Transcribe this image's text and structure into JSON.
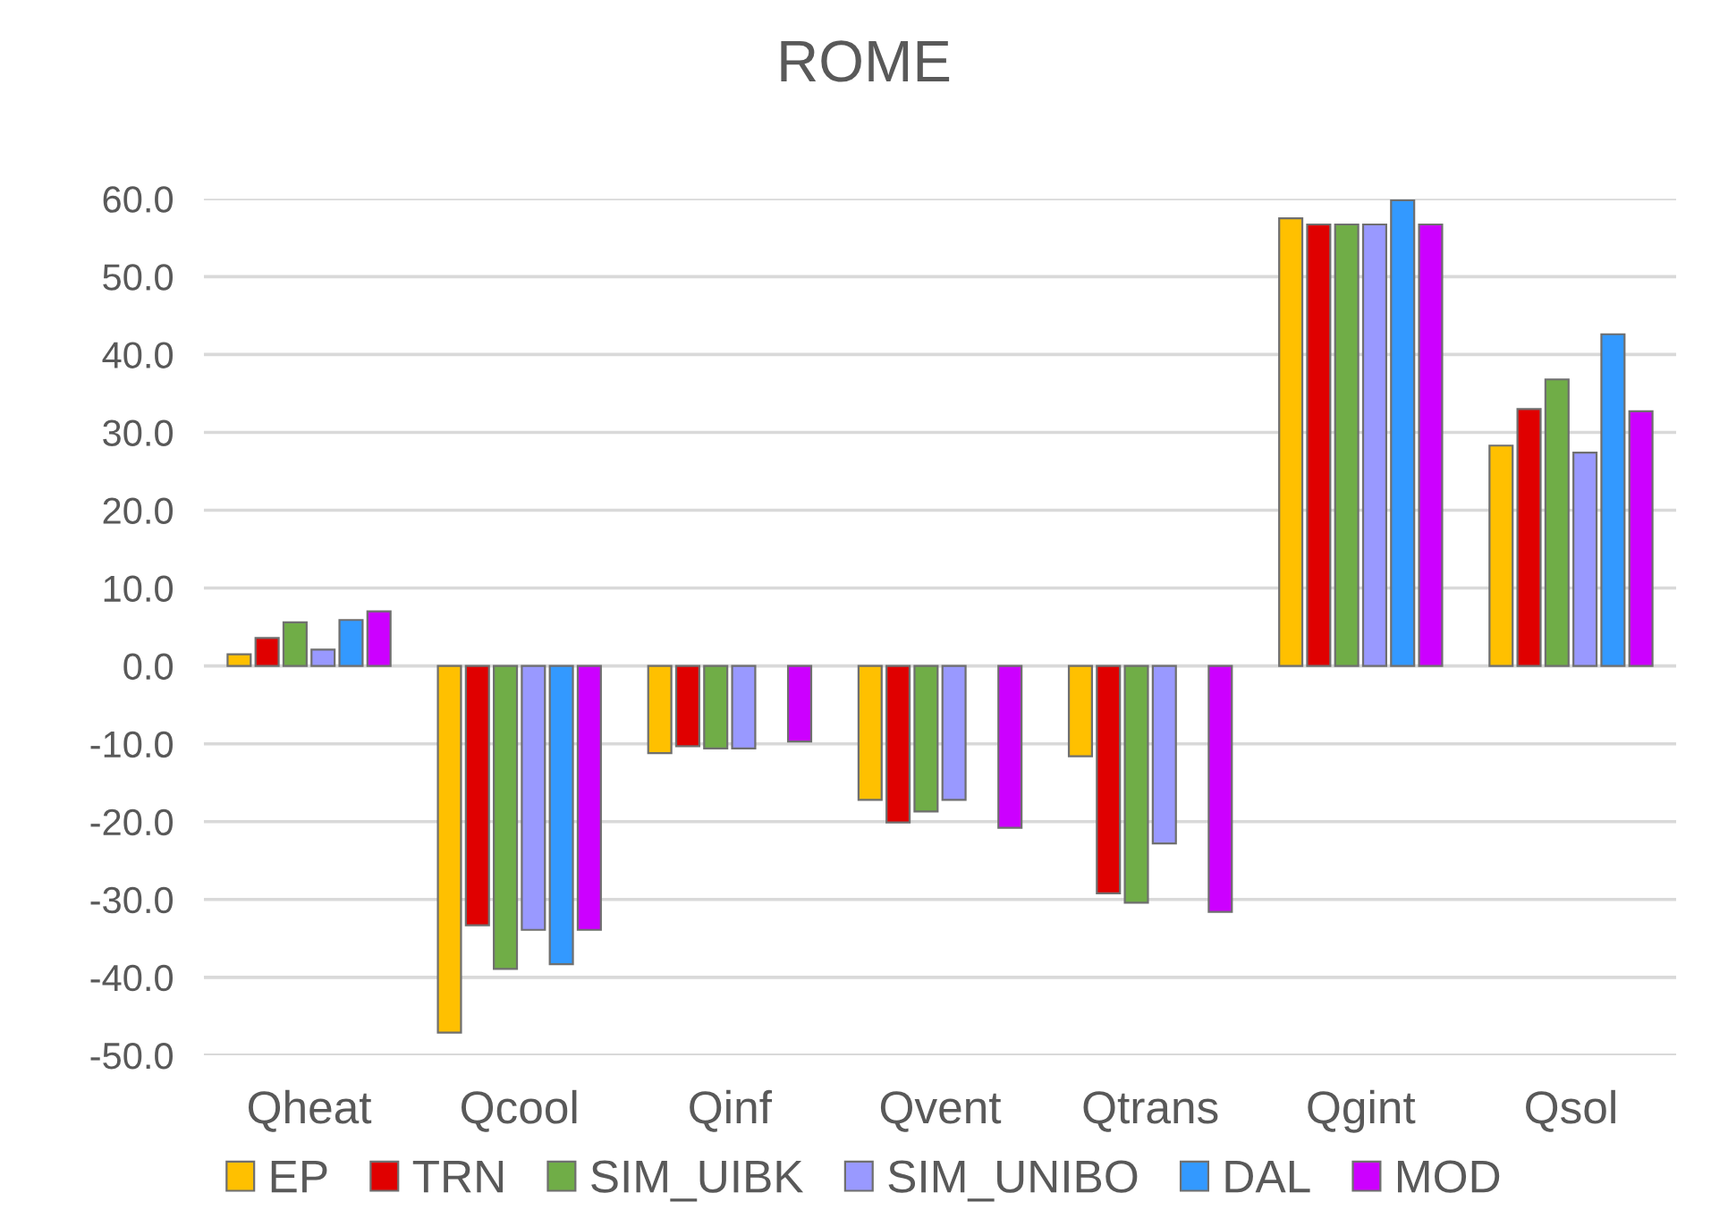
{
  "chart_data": {
    "type": "bar",
    "title": "ROME",
    "categories": [
      "Qheat",
      "Qcool",
      "Qinf",
      "Qvent",
      "Qtrans",
      "Qgint",
      "Qsol"
    ],
    "series": [
      {
        "name": "EP",
        "color": "#ffc000",
        "values": [
          1.5,
          -47.1,
          -11.2,
          -17.2,
          -11.6,
          57.5,
          28.3
        ]
      },
      {
        "name": "TRN",
        "color": "#e00000",
        "values": [
          3.6,
          -33.3,
          -10.3,
          -20.1,
          -29.2,
          56.7,
          33.0
        ]
      },
      {
        "name": "SIM_UIBK",
        "color": "#70ad47",
        "values": [
          5.6,
          -38.9,
          -10.6,
          -18.7,
          -30.4,
          56.7,
          36.8
        ]
      },
      {
        "name": "SIM_UNIBO",
        "color": "#9999ff",
        "values": [
          2.1,
          -33.9,
          -10.6,
          -17.2,
          -22.8,
          56.7,
          27.4
        ]
      },
      {
        "name": "DAL",
        "color": "#3399ff",
        "values": [
          5.9,
          -38.3,
          null,
          null,
          null,
          59.8,
          42.6
        ]
      },
      {
        "name": "MOD",
        "color": "#cc00ff",
        "values": [
          7.0,
          -33.9,
          -9.7,
          -20.8,
          -31.6,
          56.7,
          32.7
        ]
      }
    ],
    "ylim": [
      -50,
      60
    ],
    "yticks": [
      {
        "value": -50,
        "label": "-50.0"
      },
      {
        "value": -40,
        "label": "-40.0"
      },
      {
        "value": -30,
        "label": "-30.0"
      },
      {
        "value": -20,
        "label": "-20.0"
      },
      {
        "value": -10,
        "label": "-10.0"
      },
      {
        "value": 0,
        "label": "0.0"
      },
      {
        "value": 10,
        "label": "10.0"
      },
      {
        "value": 20,
        "label": "20.0"
      },
      {
        "value": 30,
        "label": "30.0"
      },
      {
        "value": 40,
        "label": "40.0"
      },
      {
        "value": 50,
        "label": "50.0"
      },
      {
        "value": 60,
        "label": "60.0"
      }
    ],
    "grid": "y",
    "legend": "bottom"
  }
}
